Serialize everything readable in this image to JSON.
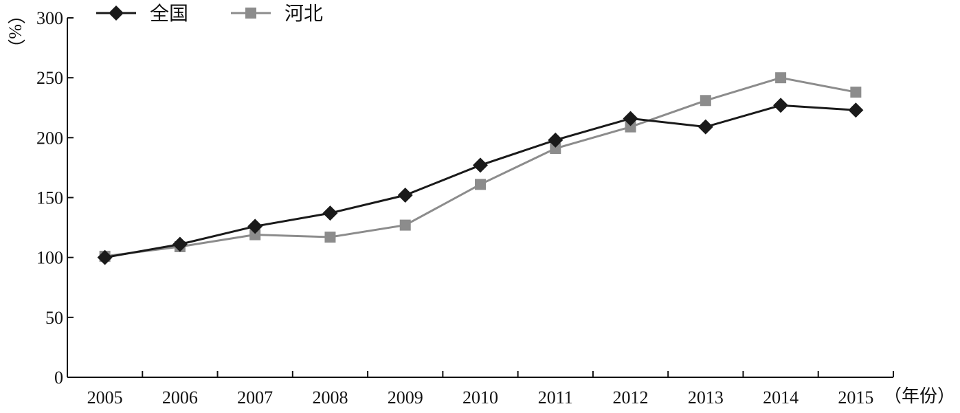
{
  "chart_data": {
    "type": "line",
    "title": "",
    "xlabel": "（年份）",
    "ylabel": "（%）",
    "ylim": [
      0,
      300
    ],
    "yticks": [
      0,
      50,
      100,
      150,
      200,
      250,
      300
    ],
    "grid": false,
    "legend_position": "top-left",
    "categories": [
      "2005",
      "2006",
      "2007",
      "2008",
      "2009",
      "2010",
      "2011",
      "2012",
      "2013",
      "2014",
      "2015"
    ],
    "series": [
      {
        "name": "全国",
        "marker": "diamond",
        "color": "#1a1a1a",
        "values": [
          100,
          111,
          126,
          137,
          152,
          177,
          198,
          216,
          209,
          227,
          223
        ]
      },
      {
        "name": "河北",
        "marker": "square",
        "color": "#8c8c8c",
        "values": [
          101,
          109,
          119,
          117,
          127,
          161,
          191,
          209,
          231,
          250,
          238
        ]
      }
    ]
  }
}
